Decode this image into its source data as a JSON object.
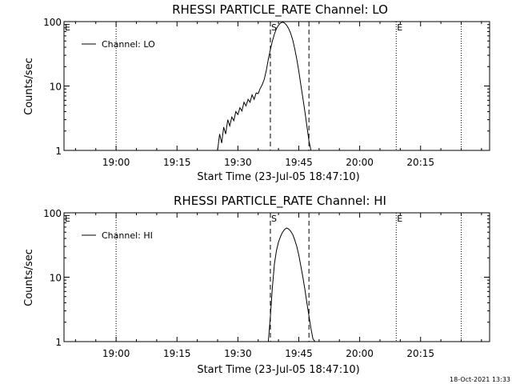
{
  "chart_data": [
    {
      "type": "line",
      "title": "RHESSI PARTICLE_RATE Channel: LO",
      "xlabel": "Start Time (23-Jul-05 18:47:10)",
      "ylabel": "Counts/sec",
      "yscale": "log",
      "xlim": [
        "18:47:10",
        "20:32:00"
      ],
      "ylim": [
        1,
        100
      ],
      "x_ticks": [
        "19:00",
        "19:15",
        "19:30",
        "19:45",
        "20:00",
        "20:15"
      ],
      "y_ticks": [
        "1",
        "10",
        "100"
      ],
      "legend": {
        "position": "top-left",
        "entries": [
          "Channel: LO"
        ]
      },
      "markers": [
        {
          "label": "E",
          "time": "18:47:10",
          "style": "dotted"
        },
        {
          "label": "",
          "time": "19:00",
          "style": "dotted"
        },
        {
          "label": "S",
          "time": "19:38:00",
          "style": "dashed"
        },
        {
          "label": "",
          "time": "19:47:30",
          "style": "dashed"
        },
        {
          "label": "E",
          "time": "20:09:00",
          "style": "dotted"
        },
        {
          "label": "",
          "time": "20:25:00",
          "style": "dotted"
        }
      ],
      "series": [
        {
          "name": "Channel: LO",
          "x": [
            "19:25:00",
            "19:25:30",
            "19:26:00",
            "19:26:30",
            "19:27:00",
            "19:27:30",
            "19:28:00",
            "19:28:30",
            "19:29:00",
            "19:29:30",
            "19:30:00",
            "19:30:30",
            "19:31:00",
            "19:31:30",
            "19:32:00",
            "19:32:30",
            "19:33:00",
            "19:33:30",
            "19:34:00",
            "19:34:30",
            "19:35:00",
            "19:35:30",
            "19:36:00",
            "19:36:30",
            "19:37:00",
            "19:37:30",
            "19:38:00",
            "19:38:30",
            "19:39:00",
            "19:39:30",
            "19:40:00",
            "19:40:30",
            "19:41:00",
            "19:41:30",
            "19:42:00",
            "19:42:30",
            "19:43:00",
            "19:43:30",
            "19:44:00",
            "19:44:30",
            "19:45:00",
            "19:45:30",
            "19:46:00",
            "19:46:30",
            "19:47:00",
            "19:47:30",
            "19:48:00",
            "19:48:30",
            "19:49:00",
            "19:49:30"
          ],
          "values": [
            1.0,
            1.8,
            1.3,
            2.3,
            1.8,
            3.0,
            2.4,
            3.3,
            2.9,
            4.0,
            3.6,
            4.6,
            4.1,
            5.6,
            4.9,
            6.2,
            5.6,
            7.3,
            6.2,
            7.8,
            7.6,
            9.2,
            10.5,
            12.8,
            17.5,
            26.0,
            37.0,
            50.0,
            64.0,
            78.0,
            88.0,
            95.0,
            98.0,
            95.0,
            88.0,
            78.0,
            66.0,
            52.0,
            38.0,
            26.0,
            17.0,
            10.5,
            6.5,
            4.0,
            2.4,
            1.4,
            1.0,
            1.0,
            1.0,
            1.0
          ]
        }
      ]
    },
    {
      "type": "line",
      "title": "RHESSI PARTICLE_RATE Channel: HI",
      "xlabel": "Start Time (23-Jul-05 18:47:10)",
      "ylabel": "Counts/sec",
      "yscale": "log",
      "xlim": [
        "18:47:10",
        "20:32:00"
      ],
      "ylim": [
        1,
        100
      ],
      "x_ticks": [
        "19:00",
        "19:15",
        "19:30",
        "19:45",
        "20:00",
        "20:15"
      ],
      "y_ticks": [
        "1",
        "10",
        "100"
      ],
      "legend": {
        "position": "top-left",
        "entries": [
          "Channel: HI"
        ]
      },
      "markers": [
        {
          "label": "E",
          "time": "18:47:10",
          "style": "dotted"
        },
        {
          "label": "",
          "time": "19:00",
          "style": "dotted"
        },
        {
          "label": "S",
          "time": "19:38:00",
          "style": "dashed"
        },
        {
          "label": "",
          "time": "19:47:30",
          "style": "dashed"
        },
        {
          "label": "E",
          "time": "20:09:00",
          "style": "dotted"
        },
        {
          "label": "",
          "time": "20:25:00",
          "style": "dotted"
        }
      ],
      "series": [
        {
          "name": "Channel: HI",
          "x": [
            "19:37:30",
            "19:38:00",
            "19:38:30",
            "19:39:00",
            "19:39:30",
            "19:40:00",
            "19:40:30",
            "19:41:00",
            "19:41:30",
            "19:42:00",
            "19:42:30",
            "19:43:00",
            "19:43:30",
            "19:44:00",
            "19:44:30",
            "19:45:00",
            "19:45:30",
            "19:46:00",
            "19:46:30",
            "19:47:00",
            "19:47:30",
            "19:48:00",
            "19:48:30",
            "19:49:00"
          ],
          "values": [
            1.0,
            2.5,
            7.0,
            16.0,
            26.0,
            35.0,
            43.0,
            50.0,
            55.0,
            58.0,
            56.0,
            52.0,
            46.0,
            38.0,
            30.0,
            22.0,
            15.0,
            10.0,
            6.5,
            4.0,
            2.5,
            1.6,
            1.1,
            1.0
          ]
        }
      ]
    }
  ],
  "footer": {
    "timestamp": "18-Oct-2021 13:33"
  }
}
